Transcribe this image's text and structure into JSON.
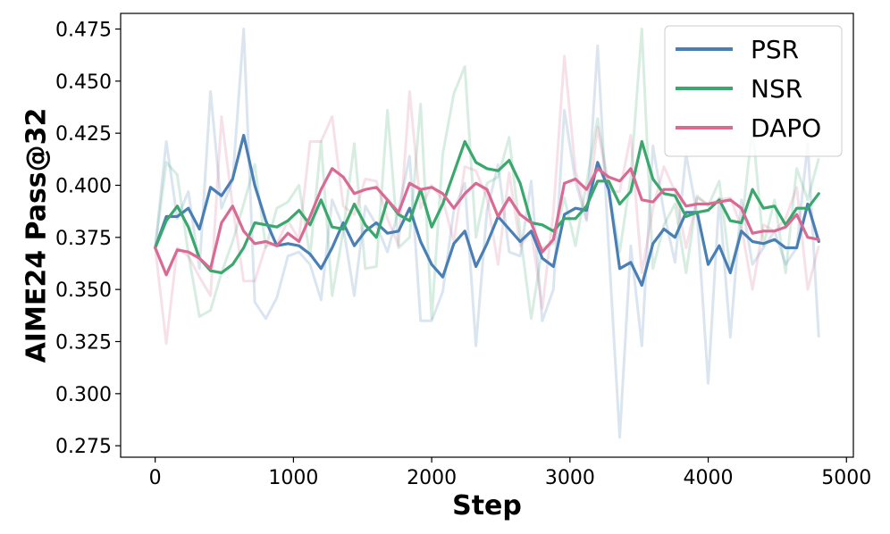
{
  "chart_data": {
    "type": "line",
    "xlabel": "Step",
    "ylabel": "AIME24 Pass@32",
    "xlim": [
      -250,
      5050
    ],
    "ylim": [
      0.2695,
      0.4825
    ],
    "xticks": [
      0,
      1000,
      2000,
      3000,
      4000,
      5000
    ],
    "yticks": [
      0.275,
      0.3,
      0.325,
      0.35,
      0.375,
      0.4,
      0.425,
      0.45,
      0.475
    ],
    "grid": false,
    "legend_position": "top-right",
    "x": [
      0,
      80,
      160,
      240,
      320,
      400,
      480,
      560,
      640,
      720,
      800,
      880,
      960,
      1040,
      1120,
      1200,
      1280,
      1360,
      1440,
      1520,
      1600,
      1680,
      1760,
      1840,
      1920,
      2000,
      2080,
      2160,
      2240,
      2320,
      2400,
      2480,
      2560,
      2640,
      2720,
      2800,
      2880,
      2960,
      3040,
      3120,
      3200,
      3280,
      3360,
      3440,
      3520,
      3600,
      3680,
      3760,
      3840,
      3920,
      4000,
      4080,
      4160,
      4240,
      4320,
      4400,
      4480,
      4560,
      4640,
      4720,
      4800
    ],
    "series": [
      {
        "name": "PSR",
        "color": "#4a7fb5",
        "smoothed": [
          0.37,
          0.385,
          0.385,
          0.389,
          0.379,
          0.399,
          0.395,
          0.403,
          0.424,
          0.4,
          0.383,
          0.371,
          0.372,
          0.371,
          0.367,
          0.36,
          0.37,
          0.382,
          0.371,
          0.378,
          0.382,
          0.377,
          0.378,
          0.389,
          0.373,
          0.362,
          0.356,
          0.372,
          0.378,
          0.361,
          0.372,
          0.385,
          0.379,
          0.373,
          0.378,
          0.365,
          0.361,
          0.386,
          0.389,
          0.388,
          0.411,
          0.398,
          0.36,
          0.363,
          0.352,
          0.372,
          0.379,
          0.375,
          0.387,
          0.387,
          0.362,
          0.371,
          0.358,
          0.378,
          0.373,
          0.372,
          0.374,
          0.37,
          0.37,
          0.391,
          0.373
        ],
        "raw": [
          0.37,
          0.421,
          0.384,
          0.397,
          0.36,
          0.445,
          0.389,
          0.402,
          0.475,
          0.344,
          0.336,
          0.346,
          0.366,
          0.368,
          0.362,
          0.345,
          0.393,
          0.38,
          0.347,
          0.39,
          0.381,
          0.368,
          0.388,
          0.414,
          0.335,
          0.335,
          0.349,
          0.388,
          0.401,
          0.323,
          0.388,
          0.41,
          0.368,
          0.366,
          0.402,
          0.335,
          0.35,
          0.436,
          0.402,
          0.383,
          0.467,
          0.37,
          0.279,
          0.371,
          0.323,
          0.419,
          0.387,
          0.363,
          0.415,
          0.386,
          0.305,
          0.394,
          0.327,
          0.393,
          0.362,
          0.37,
          0.378,
          0.362,
          0.37,
          0.42,
          0.327
        ]
      },
      {
        "name": "NSR",
        "color": "#3aa76d",
        "smoothed": [
          0.37,
          0.383,
          0.39,
          0.38,
          0.365,
          0.359,
          0.358,
          0.362,
          0.37,
          0.382,
          0.381,
          0.38,
          0.383,
          0.388,
          0.381,
          0.393,
          0.38,
          0.379,
          0.391,
          0.381,
          0.375,
          0.393,
          0.386,
          0.383,
          0.398,
          0.38,
          0.391,
          0.406,
          0.421,
          0.411,
          0.408,
          0.407,
          0.412,
          0.401,
          0.382,
          0.381,
          0.378,
          0.384,
          0.384,
          0.39,
          0.402,
          0.402,
          0.391,
          0.397,
          0.421,
          0.403,
          0.396,
          0.395,
          0.385,
          0.387,
          0.388,
          0.393,
          0.383,
          0.382,
          0.398,
          0.389,
          0.39,
          0.381,
          0.389,
          0.389,
          0.396
        ],
        "raw": [
          0.37,
          0.411,
          0.405,
          0.367,
          0.337,
          0.34,
          0.358,
          0.373,
          0.391,
          0.41,
          0.37,
          0.389,
          0.392,
          0.4,
          0.366,
          0.421,
          0.347,
          0.378,
          0.42,
          0.36,
          0.361,
          0.436,
          0.37,
          0.375,
          0.439,
          0.336,
          0.415,
          0.444,
          0.457,
          0.375,
          0.401,
          0.404,
          0.423,
          0.377,
          0.336,
          0.37,
          0.372,
          0.394,
          0.371,
          0.401,
          0.432,
          0.399,
          0.368,
          0.404,
          0.475,
          0.36,
          0.381,
          0.391,
          0.358,
          0.395,
          0.39,
          0.402,
          0.359,
          0.38,
          0.428,
          0.371,
          0.393,
          0.358,
          0.408,
          0.393,
          0.413
        ]
      },
      {
        "name": "DAPO",
        "color": "#d96a93",
        "smoothed": [
          0.37,
          0.357,
          0.369,
          0.368,
          0.365,
          0.36,
          0.382,
          0.39,
          0.378,
          0.372,
          0.373,
          0.371,
          0.377,
          0.373,
          0.385,
          0.398,
          0.408,
          0.404,
          0.396,
          0.398,
          0.399,
          0.393,
          0.387,
          0.401,
          0.398,
          0.399,
          0.396,
          0.389,
          0.396,
          0.401,
          0.398,
          0.385,
          0.394,
          0.386,
          0.382,
          0.368,
          0.374,
          0.401,
          0.403,
          0.398,
          0.408,
          0.404,
          0.402,
          0.408,
          0.393,
          0.392,
          0.398,
          0.398,
          0.39,
          0.391,
          0.391,
          0.392,
          0.393,
          0.389,
          0.377,
          0.378,
          0.378,
          0.38,
          0.386,
          0.375,
          0.374
        ],
        "raw": [
          0.37,
          0.324,
          0.37,
          0.366,
          0.356,
          0.347,
          0.433,
          0.39,
          0.354,
          0.354,
          0.371,
          0.372,
          0.383,
          0.374,
          0.421,
          0.421,
          0.433,
          0.39,
          0.386,
          0.403,
          0.402,
          0.384,
          0.371,
          0.445,
          0.389,
          0.4,
          0.393,
          0.373,
          0.409,
          0.407,
          0.394,
          0.362,
          0.406,
          0.371,
          0.378,
          0.341,
          0.387,
          0.462,
          0.407,
          0.384,
          0.428,
          0.397,
          0.397,
          0.424,
          0.358,
          0.389,
          0.409,
          0.397,
          0.37,
          0.394,
          0.391,
          0.393,
          0.394,
          0.38,
          0.35,
          0.381,
          0.378,
          0.384,
          0.399,
          0.35,
          0.371
        ]
      }
    ]
  }
}
